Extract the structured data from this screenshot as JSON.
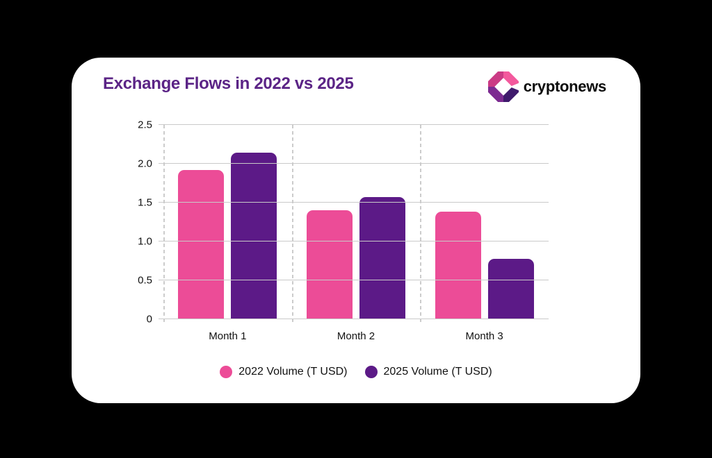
{
  "canvas": {
    "background": "#000000",
    "card_background": "#ffffff"
  },
  "header": {
    "title": "Exchange Flows in 2022 vs 2025",
    "title_color": "#5b2486"
  },
  "logo": {
    "text": "cryptonews",
    "text_color": "#0d0d0d",
    "mark_colors": {
      "top_left": "#cb3b85",
      "top_right": "#f3599d",
      "bottom_left": "#7c2b91",
      "bottom_right": "#3f1a6c",
      "cutout": "#ffffff"
    }
  },
  "chart_data": {
    "type": "bar",
    "title": "Exchange Flows in 2022 vs 2025",
    "categories": [
      "Month 1",
      "Month 2",
      "Month 3"
    ],
    "series": [
      {
        "name": "2022 Volume (T USD)",
        "color": "#ec4c97",
        "values": [
          1.92,
          1.4,
          1.38
        ]
      },
      {
        "name": "2025 Volume (T USD)",
        "color": "#5c1a87",
        "values": [
          2.14,
          1.57,
          0.78
        ]
      }
    ],
    "xlabel": "",
    "ylabel": "",
    "ylim": [
      0,
      2.5
    ],
    "y_ticks": [
      {
        "value": 0,
        "label": "0"
      },
      {
        "value": 0.5,
        "label": "0.5"
      },
      {
        "value": 1.0,
        "label": "1.0"
      },
      {
        "value": 1.5,
        "label": "1.5"
      },
      {
        "value": 2.0,
        "label": "2.0"
      },
      {
        "value": 2.5,
        "label": "2.5"
      }
    ],
    "grid": true,
    "gridline_color": "#c9c9c9",
    "separator_color": "#cccccc",
    "legend_position": "bottom"
  }
}
